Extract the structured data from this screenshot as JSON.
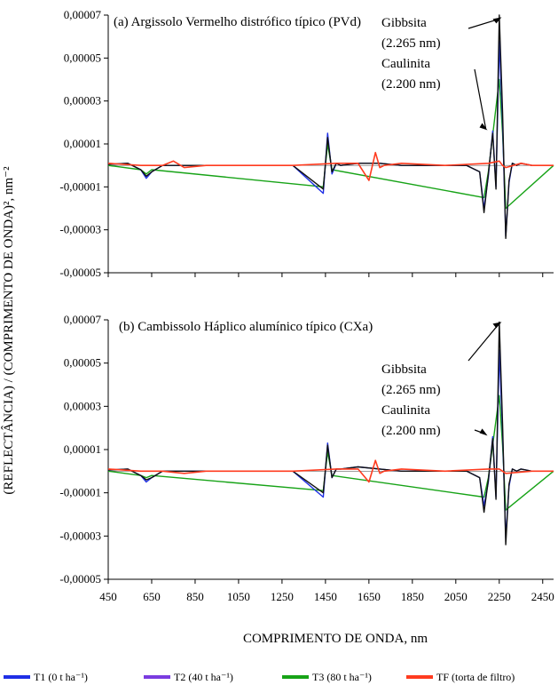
{
  "chart_data": [
    {
      "type": "line",
      "title": "(a) Argissolo Vermelho distrófico típico (PVd)",
      "ylim": [
        -5e-05,
        7e-05
      ],
      "yticks": [
        {
          "value": 7e-05,
          "label": "0,00007"
        },
        {
          "value": 5e-05,
          "label": "0,00005"
        },
        {
          "value": 3e-05,
          "label": "0,00003"
        },
        {
          "value": 1e-05,
          "label": "0,00001"
        },
        {
          "value": -1e-05,
          "label": "-0,00001"
        },
        {
          "value": -3e-05,
          "label": "-0,00003"
        },
        {
          "value": -5e-05,
          "label": "-0,00005"
        }
      ],
      "annotations": [
        {
          "text": [
            "Gibbsita",
            "(2.265 nm)"
          ],
          "x": 2265,
          "y": 6.9e-05
        },
        {
          "text": [
            "Caulinita",
            "(2.200 nm)"
          ],
          "x": 2200,
          "y": 1.6e-05
        }
      ],
      "series": [
        {
          "name": "T1 (0 t ha⁻¹)",
          "x": [
            450,
            540,
            600,
            625,
            650,
            700,
            900,
            1100,
            1300,
            1440,
            1460,
            1480,
            1500,
            1520,
            1600,
            1700,
            1800,
            1900,
            2000,
            2100,
            2160,
            2180,
            2200,
            2220,
            2235,
            2250,
            2265,
            2280,
            2295,
            2310,
            2330,
            2350,
            2400,
            2450,
            2500
          ],
          "y": [
            5e-07,
            1e-06,
            -2e-06,
            -6e-06,
            -3e-06,
            0.0,
            0.0,
            0.0,
            0.0,
            -1.3e-05,
            1.5e-05,
            -4e-06,
            1e-06,
            0.0,
            1e-06,
            1e-06,
            0.0,
            0.0,
            0.0,
            0.0,
            -3e-06,
            -2e-05,
            -5e-06,
            1.6e-05,
            -1e-05,
            5.8e-05,
            2e-05,
            -3.3e-05,
            -8e-06,
            1e-06,
            0.0,
            1e-06,
            0.0,
            0.0,
            0.0
          ]
        },
        {
          "name": "T2 (40 t ha⁻¹)",
          "x": [
            450,
            540,
            600,
            625,
            650,
            700,
            900,
            1100,
            1300,
            1440,
            1460,
            1480,
            1500,
            1520,
            1600,
            1700,
            1800,
            1900,
            2000,
            2100,
            2160,
            2180,
            2200,
            2220,
            2235,
            2250,
            2265,
            2280,
            2295,
            2310,
            2330,
            2350,
            2400,
            2450,
            2500
          ],
          "y": [
            5e-07,
            1e-06,
            -2e-06,
            -5e-06,
            -3e-06,
            0.0,
            0.0,
            0.0,
            0.0,
            -1.1e-05,
            1.3e-05,
            -3e-06,
            1e-06,
            0.0,
            1e-06,
            1e-06,
            0.0,
            0.0,
            0.0,
            0.0,
            -3e-06,
            -2.2e-05,
            -4e-06,
            1.5e-05,
            -1.1e-05,
            7e-05,
            2.5e-05,
            -3.4e-05,
            -7e-06,
            1e-06,
            0.0,
            1e-06,
            0.0,
            0.0,
            0.0
          ]
        },
        {
          "name": "T3 (80 t ha⁻¹)",
          "x": [
            450,
            600,
            625,
            650,
            1440,
            1460,
            1480,
            2180,
            2200,
            2250,
            2265,
            2280,
            2500
          ],
          "y": [
            0.0,
            -2e-06,
            -4e-06,
            -2e-06,
            -1e-05,
            1e-05,
            -2e-06,
            -1.5e-05,
            -3e-06,
            4e-05,
            1.5e-05,
            -2e-05,
            0.0
          ]
        },
        {
          "name": "TF (torta de filtro)",
          "x": [
            450,
            600,
            700,
            750,
            800,
            900,
            1100,
            1300,
            1500,
            1600,
            1650,
            1680,
            1700,
            1720,
            1800,
            2000,
            2200,
            2250,
            2265,
            2280,
            2350,
            2400,
            2500
          ],
          "y": [
            1e-06,
            0.0,
            0.0,
            2e-06,
            -1e-06,
            0.0,
            0.0,
            0.0,
            1e-06,
            1e-06,
            -7e-06,
            6e-06,
            -1e-06,
            0.0,
            1e-06,
            0.0,
            1e-06,
            2e-06,
            0.0,
            -1e-06,
            1e-06,
            0.0,
            0.0
          ]
        }
      ]
    },
    {
      "type": "line",
      "title": "(b) Cambissolo Háplico alumínico típico (CXa)",
      "ylim": [
        -5e-05,
        7e-05
      ],
      "yticks": [
        {
          "value": 7e-05,
          "label": "0,00007"
        },
        {
          "value": 5e-05,
          "label": "0,00005"
        },
        {
          "value": 3e-05,
          "label": "0,00003"
        },
        {
          "value": 1e-05,
          "label": "0,00001"
        },
        {
          "value": -1e-05,
          "label": "-0,00001"
        },
        {
          "value": -3e-05,
          "label": "-0,00003"
        },
        {
          "value": -5e-05,
          "label": "-0,00005"
        }
      ],
      "annotations": [
        {
          "text": [
            "Gibbsita",
            "(2.265 nm)"
          ],
          "x": 2265,
          "y": 6.9e-05
        },
        {
          "text": [
            "Caulinita",
            "(2.200 nm)"
          ],
          "x": 2200,
          "y": 1.6e-05
        }
      ],
      "series": [
        {
          "name": "T1 (0 t ha⁻¹)",
          "x": [
            450,
            540,
            600,
            625,
            650,
            700,
            900,
            1100,
            1300,
            1440,
            1460,
            1480,
            1500,
            1520,
            1600,
            1700,
            1800,
            1900,
            2000,
            2100,
            2160,
            2180,
            2200,
            2220,
            2235,
            2250,
            2265,
            2280,
            2295,
            2310,
            2330,
            2350,
            2400,
            2450,
            2500
          ],
          "y": [
            5e-07,
            1e-06,
            -2e-06,
            -5e-06,
            -3e-06,
            0.0,
            0.0,
            0.0,
            0.0,
            -1.2e-05,
            1.3e-05,
            -3e-06,
            1e-06,
            1e-06,
            2e-06,
            1e-06,
            0.0,
            0.0,
            0.0,
            0.0,
            -3e-06,
            -1.6e-05,
            -5e-06,
            1.6e-05,
            -1.2e-05,
            5.6e-05,
            1.8e-05,
            -3.1e-05,
            -7e-06,
            1e-06,
            0.0,
            1e-06,
            0.0,
            0.0,
            0.0
          ]
        },
        {
          "name": "T2 (40 t ha⁻¹)",
          "x": [
            450,
            540,
            600,
            625,
            650,
            700,
            900,
            1100,
            1300,
            1440,
            1460,
            1480,
            1500,
            1520,
            1600,
            1700,
            1800,
            1900,
            2000,
            2100,
            2160,
            2180,
            2200,
            2220,
            2235,
            2250,
            2265,
            2280,
            2295,
            2310,
            2330,
            2350,
            2400,
            2450,
            2500
          ],
          "y": [
            5e-07,
            1e-06,
            -2e-06,
            -4e-06,
            -3e-06,
            0.0,
            0.0,
            0.0,
            0.0,
            -1e-05,
            1.2e-05,
            -3e-06,
            1e-06,
            1e-06,
            2e-06,
            1e-06,
            0.0,
            0.0,
            0.0,
            0.0,
            -3e-06,
            -1.9e-05,
            -4e-06,
            1.5e-05,
            -1.3e-05,
            6.9e-05,
            2.2e-05,
            -3.4e-05,
            -6e-06,
            1e-06,
            0.0,
            1e-06,
            0.0,
            0.0,
            0.0
          ]
        },
        {
          "name": "T3 (80 t ha⁻¹)",
          "x": [
            450,
            600,
            625,
            650,
            1440,
            1460,
            1480,
            2180,
            2200,
            2250,
            2265,
            2280,
            2500
          ],
          "y": [
            0.0,
            -2e-06,
            -3e-06,
            -2e-06,
            -9e-06,
            9e-06,
            -2e-06,
            -1.2e-05,
            -3e-06,
            3.5e-05,
            1.2e-05,
            -1.8e-05,
            0.0
          ]
        },
        {
          "name": "TF (torta de filtro)",
          "x": [
            450,
            600,
            700,
            800,
            900,
            1100,
            1300,
            1500,
            1600,
            1650,
            1680,
            1700,
            1720,
            1800,
            2000,
            2200,
            2250,
            2265,
            2280,
            2400,
            2500
          ],
          "y": [
            1e-06,
            0.0,
            0.0,
            -1e-06,
            0.0,
            0.0,
            0.0,
            1e-06,
            1e-06,
            -5e-06,
            5e-06,
            -1e-06,
            0.0,
            1e-06,
            0.0,
            1e-06,
            1e-06,
            0.0,
            -1e-06,
            0.0,
            0.0
          ]
        }
      ]
    }
  ],
  "xaxis": {
    "xlim": [
      450,
      2500
    ],
    "ticks": [
      450,
      650,
      850,
      1050,
      1250,
      1450,
      1650,
      1850,
      2050,
      2250,
      2450
    ],
    "tick_labels": [
      "450",
      "650",
      "850",
      "1050",
      "1250",
      "1450",
      "1650",
      "1850",
      "2050",
      "2250",
      "2450"
    ],
    "label": "COMPRIMENTO DE ONDA, nm"
  },
  "ylabel": "(REFLECTÂNCIA) / (COMPRIMENTO DE ONDA)², nm⁻²",
  "legend": {
    "placement": "bottom",
    "items": [
      {
        "label": "T1 (0 t ha⁻¹)",
        "color": "#1f2fe6"
      },
      {
        "label": "T2 (40 t ha⁻¹)",
        "color": "#7a3ce0"
      },
      {
        "label": "T3 (80 t ha⁻¹)",
        "color": "#17a317"
      },
      {
        "label": "TF (torta de filtro)",
        "color": "#ff3b1f"
      }
    ]
  },
  "colors": {
    "T1": "#1f2fe6",
    "T2": "#111111",
    "T3": "#17a317",
    "TF": "#ff3b1f"
  }
}
